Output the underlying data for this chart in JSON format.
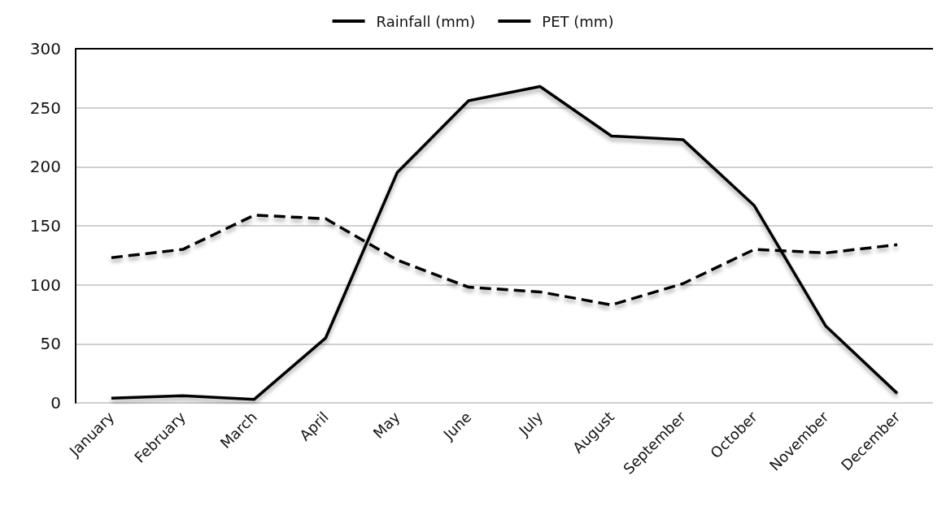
{
  "chart_data": {
    "type": "line",
    "categories": [
      "January",
      "February",
      "March",
      "April",
      "May",
      "June",
      "July",
      "August",
      "September",
      "October",
      "November",
      "December"
    ],
    "series": [
      {
        "name": "Rainfall (mm)",
        "color": "#000000",
        "line_style": "solid",
        "values": [
          4,
          6,
          3,
          55,
          195,
          256,
          268,
          226,
          223,
          167,
          65,
          8
        ]
      },
      {
        "name": "PET (mm)",
        "color": "#000000",
        "line_style": "dashed",
        "values": [
          123,
          130,
          159,
          156,
          121,
          98,
          94,
          83,
          101,
          130,
          127,
          134
        ]
      }
    ],
    "ylim": [
      0,
      300
    ],
    "yticks": [
      0,
      50,
      100,
      150,
      200,
      250,
      300
    ],
    "grid": "y",
    "legend": "top",
    "marker": "none"
  }
}
